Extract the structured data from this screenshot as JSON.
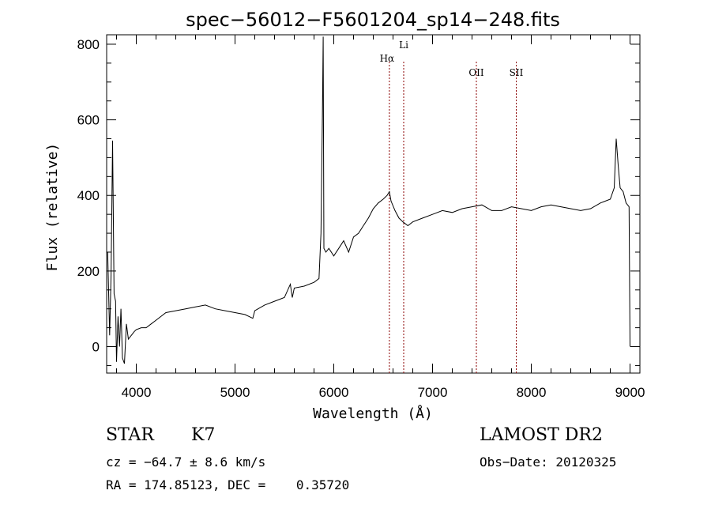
{
  "chart_data": {
    "type": "line",
    "title": "spec−56012−F5601204_sp14−248.fits",
    "xlabel": "Wavelength (Å)",
    "ylabel": "Flux (relative)",
    "xlim": [
      3700,
      9100
    ],
    "ylim": [
      -70,
      825
    ],
    "x_ticks": [
      4000,
      5000,
      6000,
      7000,
      8000,
      9000
    ],
    "y_ticks": [
      0,
      200,
      400,
      600,
      800
    ],
    "grid": false,
    "legend": "none",
    "line_color": "#000000",
    "marker_color": "#8b0000",
    "series": [
      {
        "values_x": [
          3710,
          3730,
          3745,
          3760,
          3775,
          3790,
          3800,
          3815,
          3830,
          3845,
          3860,
          3880,
          3900,
          3920,
          3950,
          3980,
          4000,
          4050,
          4100,
          4150,
          4200,
          4300,
          4400,
          4500,
          4600,
          4700,
          4800,
          4900,
          5000,
          5100,
          5180,
          5200,
          5300,
          5400,
          5500,
          5560,
          5580,
          5600,
          5700,
          5800,
          5850,
          5870,
          5885,
          5893,
          5900,
          5920,
          5950,
          6000,
          6050,
          6100,
          6150,
          6200,
          6250,
          6300,
          6350,
          6400,
          6450,
          6500,
          6540,
          6563,
          6580,
          6620,
          6660,
          6700,
          6750,
          6800,
          6900,
          7000,
          7100,
          7200,
          7300,
          7400,
          7500,
          7600,
          7700,
          7800,
          7900,
          8000,
          8100,
          8200,
          8300,
          8400,
          8500,
          8600,
          8700,
          8800,
          8840,
          8860,
          8880,
          8900,
          8930,
          8960,
          8990,
          9000
        ],
        "values_y": [
          250,
          30,
          190,
          545,
          140,
          120,
          -40,
          80,
          0,
          100,
          -30,
          -45,
          60,
          20,
          30,
          40,
          45,
          50,
          50,
          60,
          70,
          90,
          95,
          100,
          105,
          110,
          100,
          95,
          90,
          85,
          75,
          95,
          110,
          120,
          130,
          165,
          130,
          155,
          160,
          170,
          180,
          300,
          610,
          820,
          260,
          250,
          260,
          240,
          260,
          280,
          250,
          290,
          300,
          320,
          340,
          365,
          380,
          390,
          400,
          410,
          385,
          360,
          340,
          330,
          320,
          330,
          340,
          350,
          360,
          355,
          365,
          370,
          375,
          360,
          360,
          370,
          365,
          360,
          370,
          375,
          370,
          365,
          360,
          365,
          380,
          390,
          420,
          550,
          480,
          420,
          410,
          380,
          370,
          0
        ]
      }
    ],
    "markers": [
      {
        "label": "Hα",
        "x": 6563
      },
      {
        "label": "Li",
        "x": 6708
      },
      {
        "label": "OII",
        "x": 7444
      },
      {
        "label": "SII",
        "x": 7848
      }
    ]
  },
  "info": {
    "class": "STAR",
    "subclass": "K7",
    "cz": "cz = −64.7 ± 8.6 km/s",
    "coords": "RA = 174.85123, DEC =    0.35720",
    "survey": "LAMOST DR2",
    "obs_date": "Obs−Date: 20120325"
  }
}
